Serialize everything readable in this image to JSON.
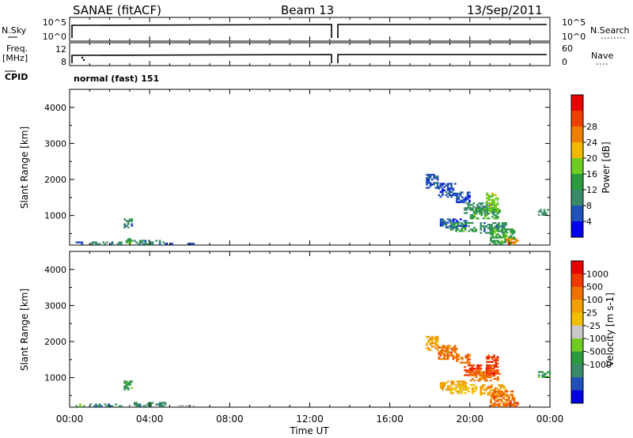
{
  "header": {
    "station": "SANAE (fitACF)",
    "beam": "Beam 13",
    "date": "13/Sep/2011"
  },
  "summary": {
    "left_labels": {
      "nsky": "N.Sky",
      "freq_line1": "Freq.",
      "freq_line2": "[MHz]",
      "cpid": "CPID"
    },
    "right_labels": {
      "nsearch": "N.Search",
      "nave": "Nave"
    },
    "nsky_ticks": [
      "10^5",
      "10^0"
    ],
    "nsearch_ticks": [
      "10^5",
      "10^0"
    ],
    "freq_ticks": [
      "12",
      "8"
    ],
    "nave_ticks": [
      "60",
      "0"
    ],
    "cpid_text": "normal (fast) 151"
  },
  "chart_data": [
    {
      "type": "heatmap",
      "panel": "power",
      "ylabel": "Slant Range [km]",
      "xlim": [
        0,
        24
      ],
      "ylim": [
        180,
        4500
      ],
      "yticks": [
        1000,
        2000,
        3000,
        4000
      ],
      "colorbar": {
        "label": "Power [dB]",
        "tick_labels": [
          "4",
          "8",
          "12",
          "16",
          "20",
          "24",
          "28"
        ],
        "colors": [
          "#0000ee",
          "#2050b8",
          "#3a8a6a",
          "#2e9a40",
          "#70cc20",
          "#f0b800",
          "#f08000",
          "#f04000",
          "#e80000"
        ]
      },
      "regions": [
        {
          "t": [
            0.3,
            0.7
          ],
          "r": [
            190,
            260
          ],
          "level": 1
        },
        {
          "t": [
            1.0,
            2.6
          ],
          "r": [
            190,
            240
          ],
          "level": 2
        },
        {
          "t": [
            2.7,
            3.1
          ],
          "r": [
            650,
            900
          ],
          "level": 2
        },
        {
          "t": [
            2.8,
            3.1
          ],
          "r": [
            190,
            350
          ],
          "level": 3
        },
        {
          "t": [
            3.2,
            4.8
          ],
          "r": [
            190,
            320
          ],
          "level": 2
        },
        {
          "t": [
            4.8,
            6.2
          ],
          "r": [
            200,
            240
          ],
          "level": 1
        },
        {
          "t": [
            17.8,
            18.4
          ],
          "r": [
            1750,
            2150
          ],
          "level": 1
        },
        {
          "t": [
            18.4,
            19.3
          ],
          "r": [
            1500,
            1900
          ],
          "level": 1
        },
        {
          "t": [
            19.3,
            20.0
          ],
          "r": [
            1350,
            1650
          ],
          "level": 1
        },
        {
          "t": [
            19.7,
            21.3
          ],
          "r": [
            1050,
            1350
          ],
          "level": 2
        },
        {
          "t": [
            20.0,
            21.5
          ],
          "r": [
            900,
            1200
          ],
          "level": 3
        },
        {
          "t": [
            20.8,
            21.4
          ],
          "r": [
            1100,
            1600
          ],
          "level": 4
        },
        {
          "t": [
            18.5,
            19.8
          ],
          "r": [
            650,
            900
          ],
          "level": 1
        },
        {
          "t": [
            19.0,
            20.3
          ],
          "r": [
            550,
            800
          ],
          "level": 3
        },
        {
          "t": [
            20.5,
            21.8
          ],
          "r": [
            500,
            800
          ],
          "level": 2
        },
        {
          "t": [
            21.0,
            22.2
          ],
          "r": [
            190,
            600
          ],
          "level": 3
        },
        {
          "t": [
            21.8,
            22.4
          ],
          "r": [
            190,
            350
          ],
          "level": 6
        },
        {
          "t": [
            23.4,
            24.0
          ],
          "r": [
            1000,
            1150
          ],
          "level": 2
        }
      ]
    },
    {
      "type": "heatmap",
      "panel": "velocity",
      "ylabel": "Slant Range [km]",
      "xlabel": "Time UT",
      "xlim": [
        0,
        24
      ],
      "ylim": [
        180,
        4500
      ],
      "yticks": [
        1000,
        2000,
        3000,
        4000
      ],
      "xtick_labels": [
        "00:00",
        "04:00",
        "08:00",
        "12:00",
        "16:00",
        "20:00",
        "00:00"
      ],
      "colorbar": {
        "label": "Velocity [m s-1]",
        "tick_labels": [
          "1000",
          "500",
          "100",
          "25",
          "-25",
          "-100",
          "-500",
          "-1000"
        ],
        "colors": [
          "#0000e0",
          "#2050b8",
          "#3a8a6a",
          "#2e9a40",
          "#70cc20",
          "#c8c8c8",
          "#f0c000",
          "#f0a000",
          "#f07000",
          "#f03800",
          "#e80000"
        ]
      },
      "regions": [
        {
          "t": [
            0.3,
            0.7
          ],
          "r": [
            190,
            260
          ],
          "level": 4
        },
        {
          "t": [
            1.0,
            2.6
          ],
          "r": [
            190,
            240
          ],
          "level": 2
        },
        {
          "t": [
            2.7,
            3.1
          ],
          "r": [
            650,
            900
          ],
          "level": 3
        },
        {
          "t": [
            3.2,
            4.8
          ],
          "r": [
            190,
            320
          ],
          "level": 2
        },
        {
          "t": [
            4.8,
            6.2
          ],
          "r": [
            200,
            240
          ],
          "level": 5
        },
        {
          "t": [
            17.8,
            18.4
          ],
          "r": [
            1750,
            2150
          ],
          "level": 7
        },
        {
          "t": [
            18.4,
            19.3
          ],
          "r": [
            1500,
            1900
          ],
          "level": 8
        },
        {
          "t": [
            19.3,
            20.0
          ],
          "r": [
            1350,
            1650
          ],
          "level": 8
        },
        {
          "t": [
            19.7,
            21.3
          ],
          "r": [
            1050,
            1350
          ],
          "level": 9
        },
        {
          "t": [
            20.0,
            21.5
          ],
          "r": [
            900,
            1200
          ],
          "level": 8
        },
        {
          "t": [
            20.8,
            21.4
          ],
          "r": [
            1100,
            1600
          ],
          "level": 9
        },
        {
          "t": [
            18.5,
            19.8
          ],
          "r": [
            650,
            900
          ],
          "level": 7
        },
        {
          "t": [
            19.0,
            20.3
          ],
          "r": [
            550,
            800
          ],
          "level": 6
        },
        {
          "t": [
            20.5,
            21.8
          ],
          "r": [
            500,
            800
          ],
          "level": 7
        },
        {
          "t": [
            21.0,
            22.2
          ],
          "r": [
            190,
            600
          ],
          "level": 8
        },
        {
          "t": [
            21.8,
            22.4
          ],
          "r": [
            190,
            350
          ],
          "level": 9
        },
        {
          "t": [
            23.4,
            24.0
          ],
          "r": [
            1000,
            1150
          ],
          "level": 3
        }
      ]
    }
  ]
}
